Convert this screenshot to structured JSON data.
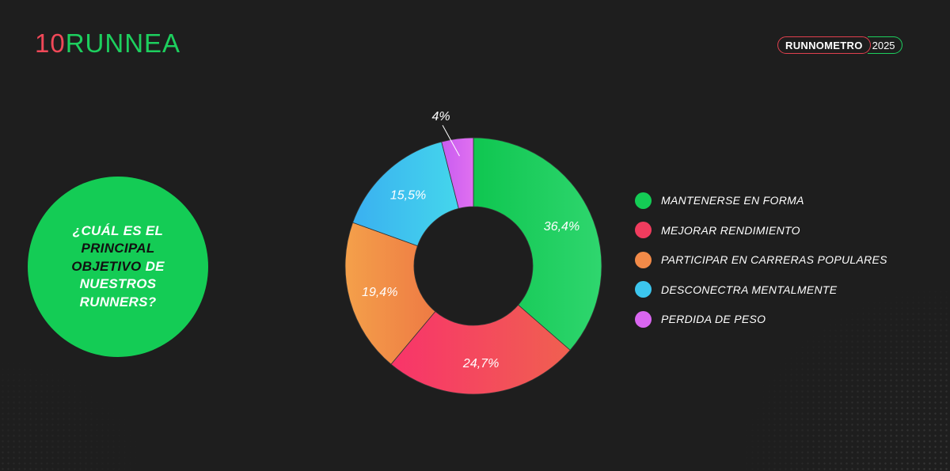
{
  "brand": {
    "logo_part1": "10",
    "logo_part2": "RUNNEA"
  },
  "badge": {
    "name": "RUNNOMETRO",
    "year": "2025"
  },
  "question": {
    "line1": "¿CUÁL ES EL",
    "line2": "PRINCIPAL",
    "line3_dark": "OBJETIVO",
    "line3_rest": " DE",
    "line4": "NUESTROS",
    "line5": "RUNNERS?"
  },
  "colors": {
    "background": "#1e1e1e",
    "green": "#14cc55",
    "red": "#f03c5e",
    "orange": "#f28a48",
    "blue": "#3cc6ee",
    "purple": "#d966f0"
  },
  "chart_data": {
    "type": "pie",
    "donut": true,
    "categories": [
      "MANTENERSE EN FORMA",
      "MEJORAR RENDIMIENTO",
      "PARTICIPAR EN CARRERAS POPULARES",
      "DESCONECTRA MENTALMENTE",
      "PERDIDA DE PESO"
    ],
    "values": [
      36.4,
      24.7,
      19.4,
      15.5,
      4
    ],
    "value_labels": [
      "36,4%",
      "24,7%",
      "19,4%",
      "15,5%",
      "4%"
    ],
    "colors": [
      "#14cc55",
      "#f03c5e",
      "#f28a48",
      "#3cc6ee",
      "#d966f0"
    ],
    "legend_position": "right"
  }
}
